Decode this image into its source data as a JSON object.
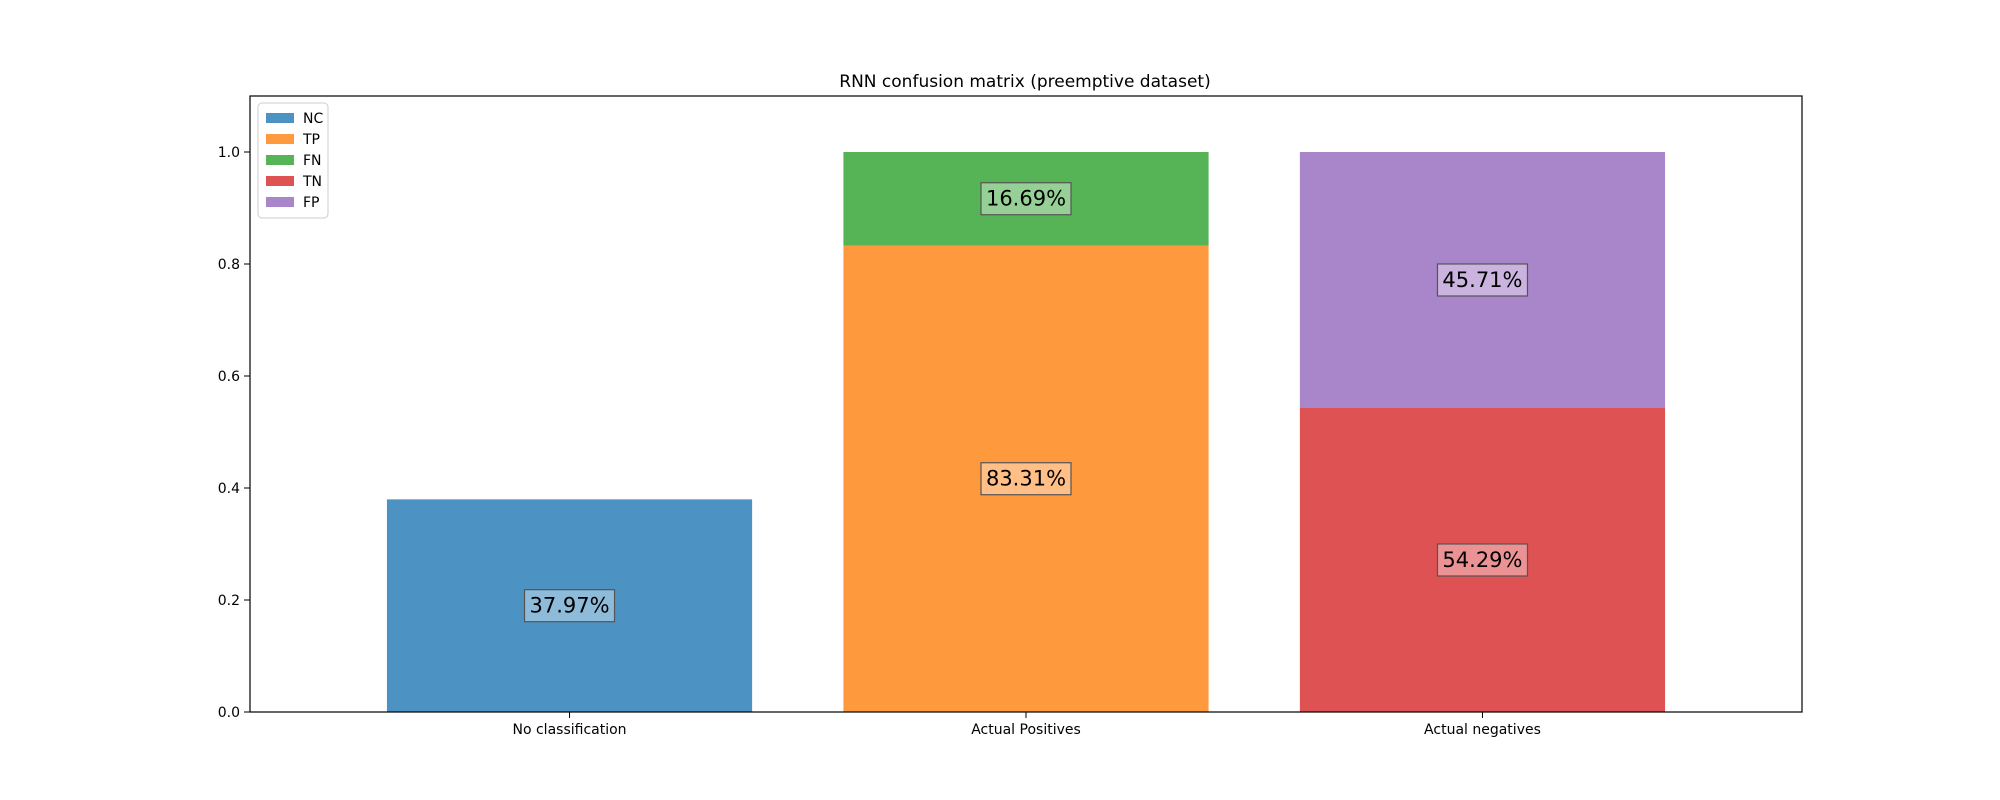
{
  "chart_data": {
    "type": "bar",
    "stacked": true,
    "title": "RNN confusion matrix (preemptive dataset)",
    "xlabel": "",
    "ylabel": "",
    "categories": [
      "No classification",
      "Actual Positives",
      "Actual negatives"
    ],
    "ylim": [
      0,
      1.1
    ],
    "yticks": [
      "0.0",
      "0.2",
      "0.4",
      "0.6",
      "0.8",
      "1.0"
    ],
    "grid": false,
    "legend_position": "top-left",
    "series": [
      {
        "name": "NC",
        "color": "#1f77b4",
        "values": [
          0.3797,
          0,
          0
        ],
        "labels": [
          "37.97%",
          "",
          ""
        ]
      },
      {
        "name": "TP",
        "color": "#ff7f0e",
        "values": [
          0,
          0.8331,
          0
        ],
        "labels": [
          "",
          "83.31%",
          ""
        ]
      },
      {
        "name": "FN",
        "color": "#2ca02c",
        "values": [
          0,
          0.1669,
          0
        ],
        "labels": [
          "",
          "16.69%",
          ""
        ]
      },
      {
        "name": "TN",
        "color": "#d62728",
        "values": [
          0,
          0,
          0.5429
        ],
        "labels": [
          "",
          "",
          "54.29%"
        ]
      },
      {
        "name": "FP",
        "color": "#9467bd",
        "values": [
          0,
          0,
          0.4571
        ],
        "labels": [
          "",
          "",
          "45.71%"
        ]
      }
    ]
  }
}
